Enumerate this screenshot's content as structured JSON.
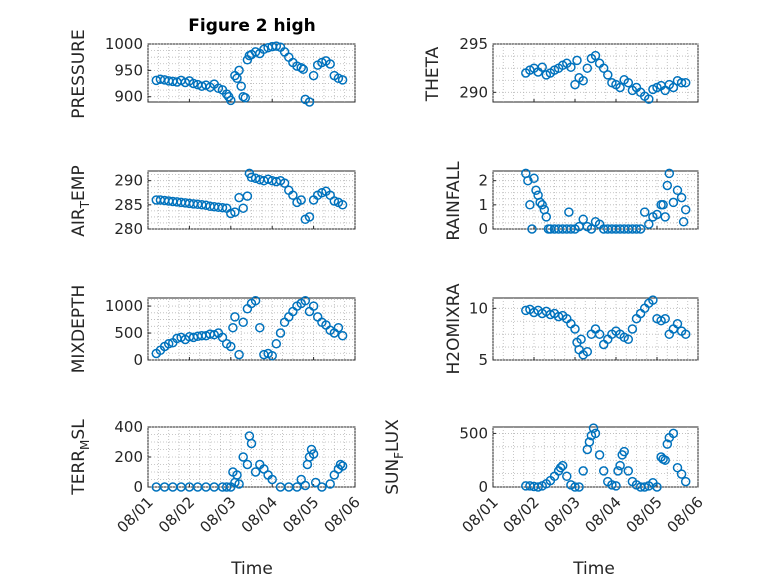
{
  "chart_data": [
    {
      "id": "p1",
      "type": "scatter",
      "title": "Figure 2 high",
      "ylabel": "PRESSURE",
      "ylim": [
        890,
        1000
      ],
      "yticks": [
        900,
        950,
        1000
      ],
      "x": [
        1.2,
        1.3,
        1.4,
        1.5,
        1.6,
        1.7,
        1.8,
        1.9,
        2.0,
        2.1,
        2.2,
        2.3,
        2.4,
        2.5,
        2.6,
        2.7,
        2.8,
        2.9,
        2.95,
        3.0,
        3.1,
        3.15,
        3.2,
        3.25,
        3.3,
        3.35,
        3.4,
        3.45,
        3.5,
        3.6,
        3.7,
        3.8,
        3.9,
        4.0,
        4.1,
        4.2,
        4.3,
        4.4,
        4.5,
        4.6,
        4.7,
        4.75,
        4.8,
        4.9,
        5.0,
        5.1,
        5.2,
        5.3,
        5.4,
        5.5,
        5.6,
        5.7
      ],
      "y": [
        931,
        933,
        932,
        930,
        929,
        928,
        931,
        927,
        930,
        925,
        923,
        920,
        922,
        918,
        924,
        916,
        913,
        905,
        900,
        893,
        940,
        935,
        950,
        920,
        900,
        898,
        970,
        978,
        980,
        985,
        982,
        990,
        993,
        995,
        996,
        994,
        985,
        975,
        965,
        958,
        955,
        952,
        895,
        890,
        940,
        960,
        965,
        968,
        962,
        940,
        935,
        932
      ]
    },
    {
      "id": "p2",
      "type": "scatter",
      "ylabel": "THETA",
      "ylim": [
        289,
        295
      ],
      "yticks": [
        290,
        295
      ],
      "x": [
        1.8,
        1.9,
        2.0,
        2.1,
        2.2,
        2.3,
        2.4,
        2.5,
        2.6,
        2.7,
        2.8,
        2.9,
        3.0,
        3.05,
        3.1,
        3.2,
        3.3,
        3.4,
        3.5,
        3.6,
        3.7,
        3.8,
        3.9,
        4.0,
        4.1,
        4.2,
        4.3,
        4.4,
        4.5,
        4.6,
        4.7,
        4.8,
        4.9,
        5.0,
        5.1,
        5.2,
        5.3,
        5.4,
        5.5,
        5.6,
        5.7
      ],
      "y": [
        292.0,
        292.3,
        292.5,
        292.1,
        292.6,
        291.8,
        292.0,
        292.3,
        292.5,
        292.8,
        293.0,
        292.6,
        290.8,
        293.3,
        291.5,
        291.2,
        292.5,
        293.5,
        293.8,
        293.0,
        292.5,
        291.8,
        291.0,
        290.8,
        290.5,
        291.3,
        291.0,
        290.2,
        290.5,
        290.0,
        289.6,
        289.3,
        290.3,
        290.5,
        290.7,
        290.2,
        290.8,
        290.5,
        291.2,
        291.0,
        291.0
      ]
    },
    {
      "id": "p3",
      "type": "scatter",
      "ylabel": "AIR_TEMP",
      "ylim": [
        280,
        292
      ],
      "yticks": [
        280,
        285,
        290
      ],
      "x": [
        1.2,
        1.3,
        1.4,
        1.5,
        1.6,
        1.7,
        1.8,
        1.9,
        2.0,
        2.1,
        2.2,
        2.3,
        2.4,
        2.5,
        2.6,
        2.7,
        2.8,
        2.9,
        3.0,
        3.1,
        3.2,
        3.3,
        3.4,
        3.45,
        3.5,
        3.6,
        3.7,
        3.8,
        3.9,
        4.0,
        4.1,
        4.2,
        4.3,
        4.4,
        4.5,
        4.6,
        4.7,
        4.8,
        4.9,
        5.0,
        5.1,
        5.2,
        5.3,
        5.4,
        5.5,
        5.6,
        5.7
      ],
      "y": [
        286.0,
        286.0,
        285.9,
        285.8,
        285.7,
        285.6,
        285.5,
        285.4,
        285.3,
        285.2,
        285.1,
        285.0,
        284.9,
        284.7,
        284.6,
        284.5,
        284.4,
        284.3,
        283.2,
        283.5,
        286.5,
        284.3,
        286.8,
        291.5,
        290.7,
        290.5,
        290.2,
        290.0,
        290.3,
        290.0,
        289.8,
        290.0,
        289.5,
        288.0,
        287.0,
        285.5,
        286.0,
        282.0,
        282.5,
        286.0,
        287.0,
        287.5,
        287.8,
        287.0,
        285.8,
        285.5,
        285.0
      ]
    },
    {
      "id": "p4",
      "type": "scatter",
      "ylabel": "RAINFALL",
      "ylim": [
        0,
        2.4
      ],
      "yticks": [
        0,
        1,
        2
      ],
      "x": [
        1.8,
        1.85,
        1.9,
        1.95,
        2.0,
        2.05,
        2.1,
        2.15,
        2.2,
        2.25,
        2.3,
        2.35,
        2.4,
        2.5,
        2.6,
        2.7,
        2.8,
        2.85,
        2.9,
        3.0,
        3.1,
        3.2,
        3.3,
        3.4,
        3.5,
        3.6,
        3.7,
        3.8,
        3.9,
        4.0,
        4.1,
        4.2,
        4.3,
        4.4,
        4.5,
        4.6,
        4.7,
        4.8,
        4.9,
        5.0,
        5.1,
        5.15,
        5.2,
        5.25,
        5.3,
        5.4,
        5.5,
        5.6,
        5.65,
        5.7
      ],
      "y": [
        2.3,
        2.0,
        1.0,
        0.0,
        2.1,
        1.6,
        1.4,
        1.1,
        1.0,
        0.8,
        0.5,
        0.0,
        0.0,
        0.0,
        0.0,
        0.0,
        0.0,
        0.7,
        0.0,
        0.0,
        0.1,
        0.4,
        0.1,
        0.0,
        0.3,
        0.2,
        0.0,
        0.0,
        0.0,
        0.0,
        0.0,
        0.0,
        0.0,
        0.0,
        0.0,
        0.0,
        0.7,
        0.2,
        0.5,
        0.6,
        1.0,
        1.0,
        0.5,
        1.8,
        2.3,
        1.1,
        1.6,
        1.3,
        0.3,
        0.8
      ]
    },
    {
      "id": "p5",
      "type": "scatter",
      "ylabel": "MIXDEPTH",
      "ylim": [
        0,
        1150
      ],
      "yticks": [
        0,
        500,
        1000
      ],
      "x": [
        1.2,
        1.3,
        1.4,
        1.5,
        1.6,
        1.7,
        1.8,
        1.9,
        2.0,
        2.1,
        2.2,
        2.3,
        2.4,
        2.5,
        2.6,
        2.7,
        2.8,
        2.9,
        3.0,
        3.05,
        3.1,
        3.2,
        3.3,
        3.4,
        3.5,
        3.6,
        3.7,
        3.8,
        3.9,
        4.0,
        4.1,
        4.2,
        4.3,
        4.4,
        4.5,
        4.6,
        4.7,
        4.8,
        4.9,
        5.0,
        5.1,
        5.2,
        5.3,
        5.4,
        5.5,
        5.6,
        5.7
      ],
      "y": [
        120,
        180,
        250,
        300,
        320,
        400,
        420,
        380,
        430,
        420,
        440,
        450,
        450,
        480,
        470,
        500,
        420,
        300,
        250,
        600,
        800,
        100,
        700,
        950,
        1050,
        1100,
        600,
        100,
        120,
        80,
        300,
        500,
        700,
        800,
        900,
        1000,
        1050,
        1100,
        900,
        1000,
        800,
        700,
        650,
        550,
        500,
        600,
        450
      ]
    },
    {
      "id": "p6",
      "type": "scatter",
      "ylabel": "H2OMIXRA",
      "ylim": [
        5,
        11
      ],
      "yticks": [
        5,
        10
      ],
      "x": [
        1.8,
        1.9,
        2.0,
        2.1,
        2.2,
        2.3,
        2.4,
        2.5,
        2.6,
        2.7,
        2.8,
        2.9,
        3.0,
        3.05,
        3.1,
        3.15,
        3.2,
        3.3,
        3.4,
        3.5,
        3.6,
        3.7,
        3.8,
        3.9,
        4.0,
        4.1,
        4.2,
        4.3,
        4.4,
        4.5,
        4.6,
        4.7,
        4.8,
        4.9,
        5.0,
        5.1,
        5.2,
        5.3,
        5.4,
        5.5,
        5.6,
        5.7
      ],
      "y": [
        9.8,
        9.9,
        9.6,
        9.8,
        9.5,
        9.7,
        9.4,
        9.5,
        9.2,
        9.3,
        9.0,
        8.5,
        8.0,
        6.7,
        6.0,
        7.0,
        5.5,
        5.8,
        7.5,
        8.0,
        7.5,
        6.5,
        7.0,
        7.5,
        7.8,
        7.5,
        7.2,
        7.0,
        8.0,
        9.0,
        9.5,
        10.0,
        10.5,
        10.8,
        9.0,
        8.8,
        9.0,
        7.5,
        8.0,
        8.5,
        7.8,
        7.5
      ]
    },
    {
      "id": "p7",
      "type": "scatter",
      "ylabel": "TERR_MSL",
      "ylim": [
        0,
        400
      ],
      "yticks": [
        0,
        200,
        400
      ],
      "x": [
        1.2,
        1.4,
        1.6,
        1.8,
        2.0,
        2.2,
        2.4,
        2.6,
        2.8,
        2.9,
        3.0,
        3.05,
        3.1,
        3.15,
        3.2,
        3.3,
        3.4,
        3.45,
        3.5,
        3.6,
        3.7,
        3.8,
        3.9,
        4.0,
        4.2,
        4.4,
        4.6,
        4.7,
        4.8,
        4.85,
        4.9,
        4.95,
        5.0,
        5.05,
        5.2,
        5.4,
        5.5,
        5.6,
        5.65,
        5.7
      ],
      "y": [
        0,
        0,
        0,
        0,
        0,
        0,
        0,
        0,
        0,
        0,
        0,
        100,
        30,
        80,
        20,
        200,
        150,
        340,
        290,
        100,
        150,
        120,
        80,
        50,
        0,
        0,
        0,
        50,
        10,
        150,
        200,
        250,
        220,
        30,
        0,
        20,
        80,
        120,
        150,
        140
      ]
    },
    {
      "id": "p8",
      "type": "scatter",
      "ylabel": "SUN_FLUX",
      "ylim": [
        0,
        560
      ],
      "yticks": [
        0,
        500
      ],
      "x": [
        1.8,
        1.9,
        2.0,
        2.1,
        2.2,
        2.3,
        2.4,
        2.5,
        2.6,
        2.65,
        2.7,
        2.8,
        2.9,
        3.0,
        3.1,
        3.2,
        3.3,
        3.35,
        3.4,
        3.45,
        3.5,
        3.6,
        3.7,
        3.8,
        3.9,
        4.0,
        4.05,
        4.1,
        4.15,
        4.2,
        4.3,
        4.4,
        4.5,
        4.6,
        4.7,
        4.8,
        4.9,
        5.0,
        5.1,
        5.15,
        5.2,
        5.25,
        5.3,
        5.4,
        5.5,
        5.6,
        5.7
      ],
      "y": [
        10,
        10,
        5,
        0,
        10,
        30,
        60,
        100,
        150,
        180,
        200,
        100,
        20,
        0,
        0,
        150,
        350,
        420,
        480,
        550,
        500,
        300,
        150,
        50,
        20,
        10,
        150,
        200,
        300,
        330,
        150,
        50,
        20,
        0,
        0,
        10,
        40,
        0,
        280,
        260,
        250,
        400,
        460,
        500,
        180,
        120,
        50
      ]
    }
  ],
  "xaxis": {
    "xlim": [
      1,
      6
    ],
    "ticks": [
      1,
      2,
      3,
      4,
      5,
      6
    ],
    "tick_labels": [
      "08/01",
      "08/02",
      "08/03",
      "08/04",
      "08/05",
      "08/06"
    ],
    "xlabel": "Time"
  },
  "colors": {
    "marker": "#0072BD"
  },
  "labels": {
    "title": "Figure 2 high",
    "xlabel_left": "Time",
    "xlabel_right": "Time",
    "p1": "PRESSURE",
    "p2": "THETA",
    "p3_main": "AIR",
    "p3_sub": "T",
    "p3_tail": "EMP",
    "p4": "RAINFALL",
    "p5": "MIXDEPTH",
    "p6": "H2OMIXRA",
    "p7_main": "TERR",
    "p7_sub": "M",
    "p7_tail": "SL",
    "p8_main": "SUN",
    "p8_sub": "F",
    "p8_tail": "LUX"
  }
}
